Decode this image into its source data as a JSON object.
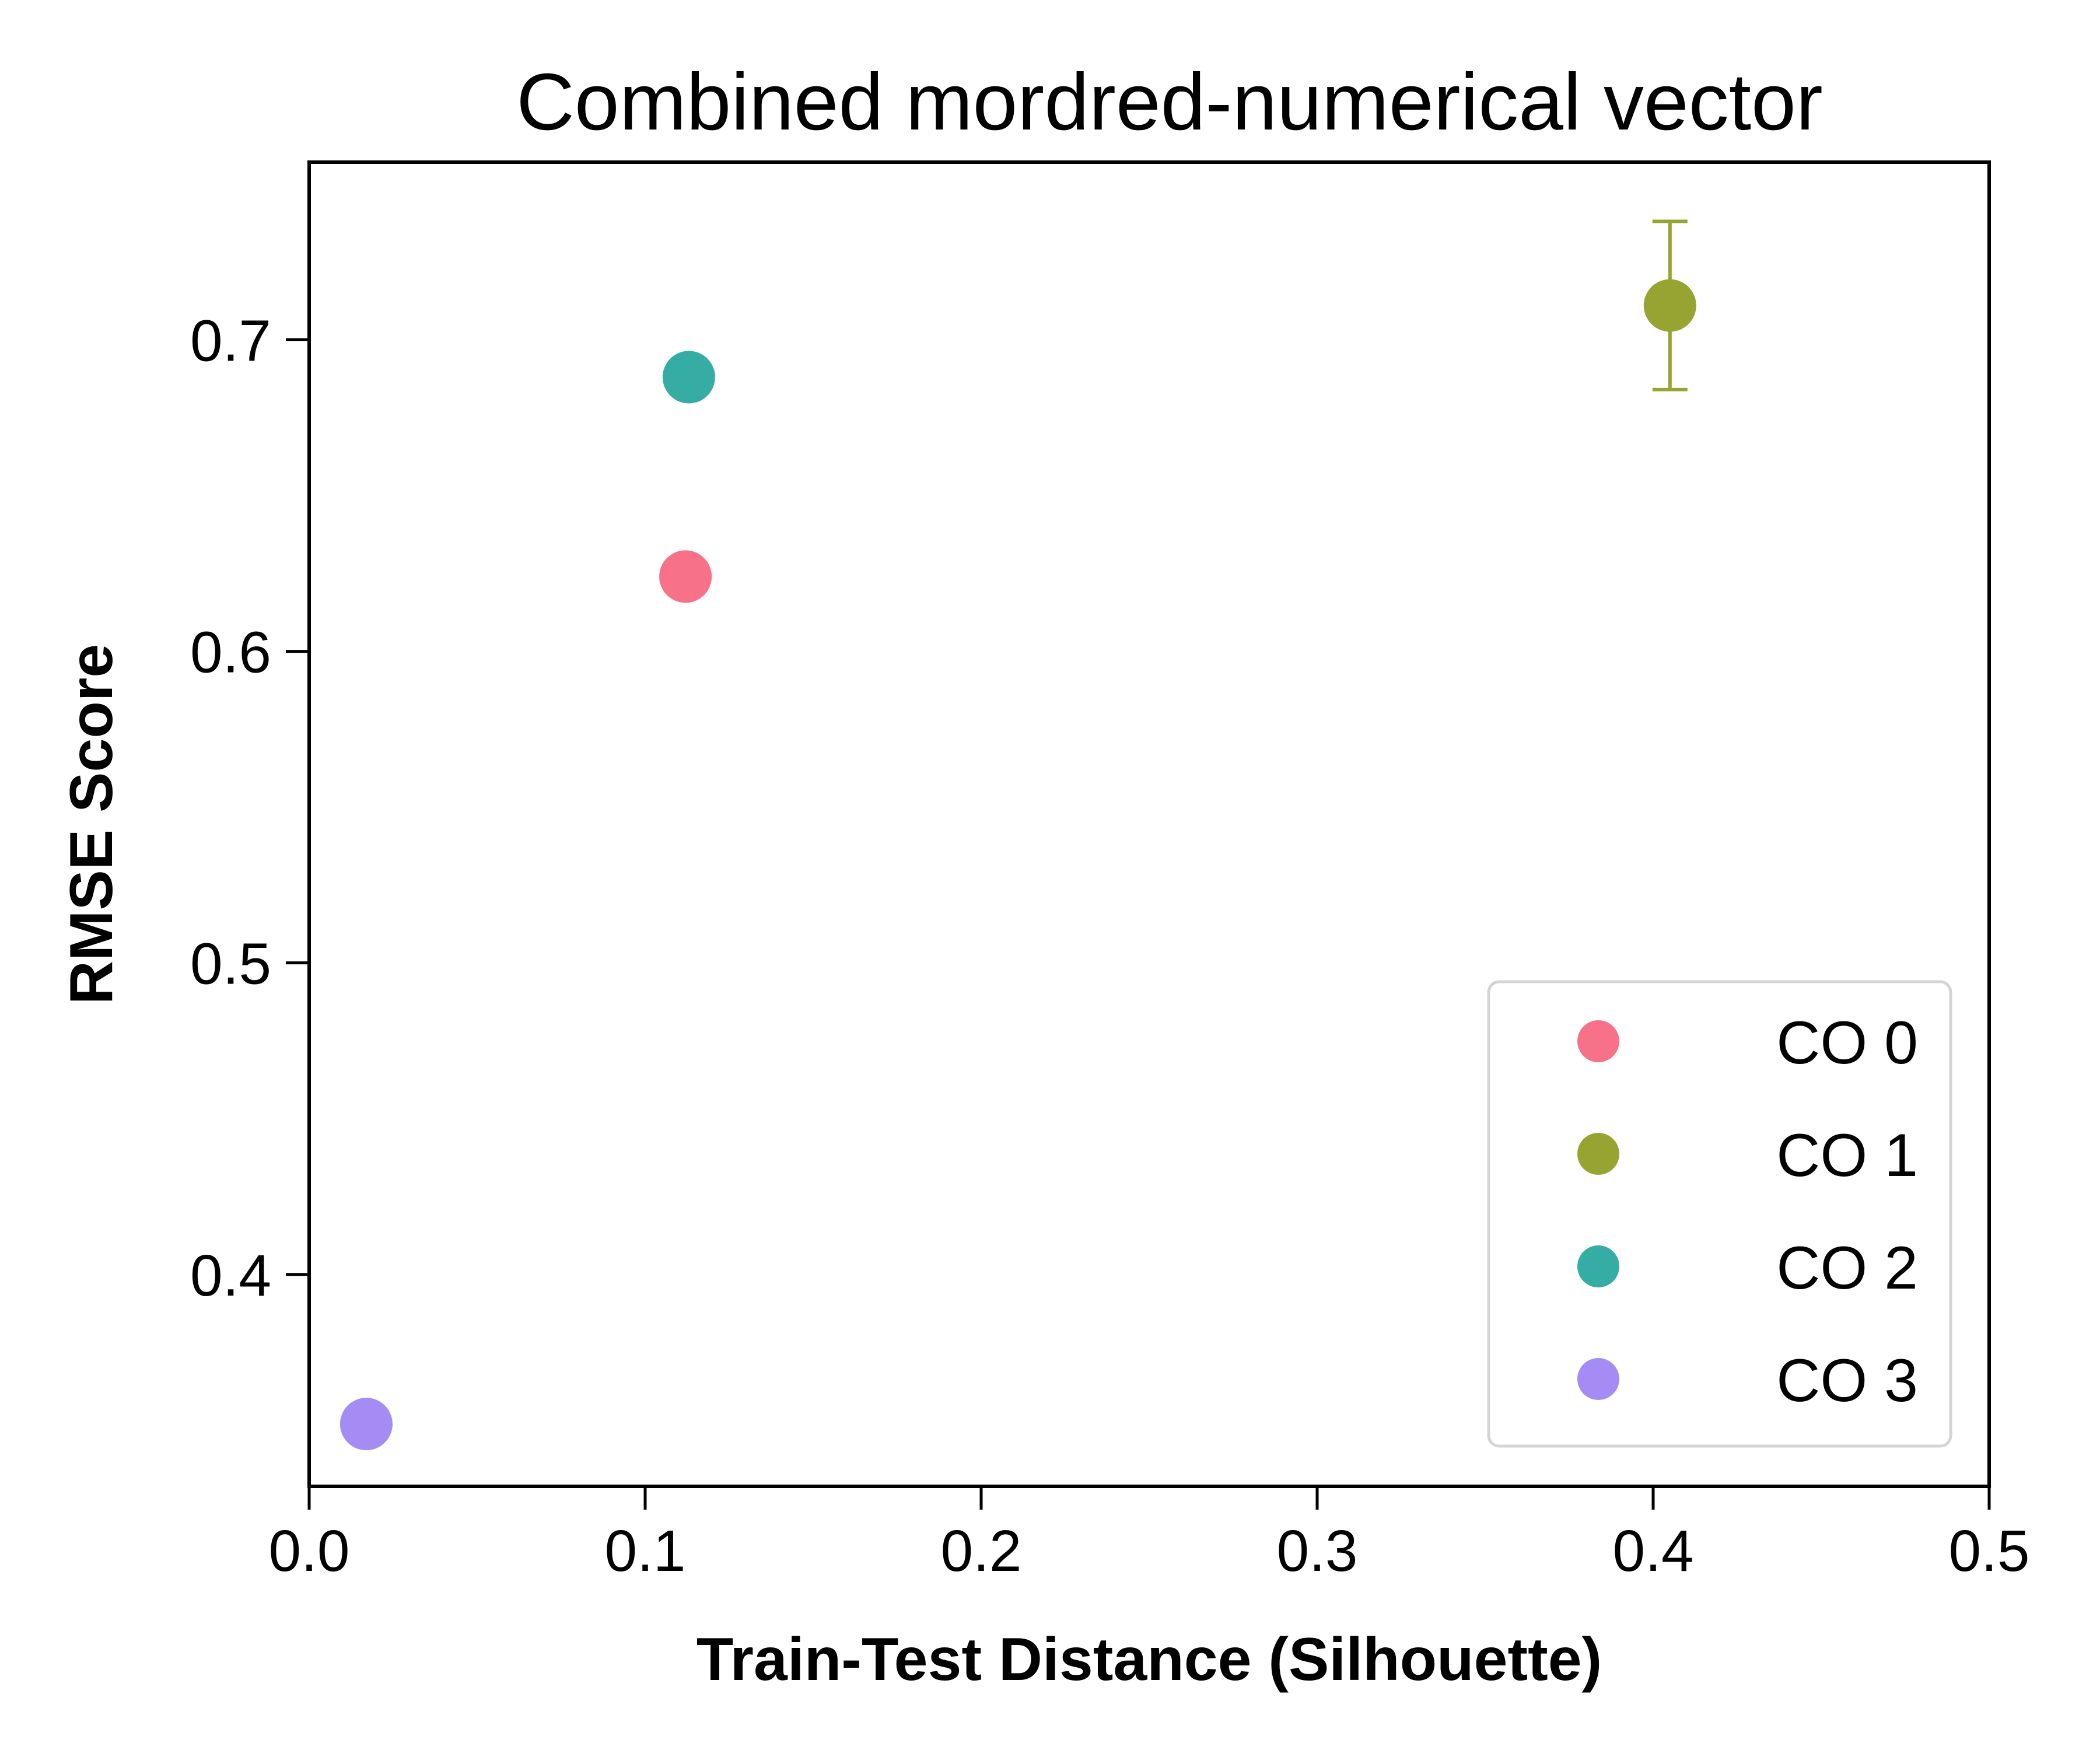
{
  "chart_data": {
    "type": "scatter",
    "title": "Combined mordred-numerical vector",
    "xlabel": "Train-Test Distance (Silhouette)",
    "ylabel": "RMSE Score",
    "xlim": [
      0.0,
      0.5
    ],
    "ylim": [
      0.332,
      0.757
    ],
    "xticks": [
      "0.0",
      "0.1",
      "0.2",
      "0.3",
      "0.4",
      "0.5"
    ],
    "yticks": [
      "0.4",
      "0.5",
      "0.6",
      "0.7"
    ],
    "grid": false,
    "legend_position": "bottom-right",
    "series": [
      {
        "name": "CO 0",
        "color": "#f77189",
        "x": 0.112,
        "y": 0.624,
        "yerr": 0.003
      },
      {
        "name": "CO 1",
        "color": "#97a431",
        "x": 0.405,
        "y": 0.711,
        "yerr": 0.027
      },
      {
        "name": "CO 2",
        "color": "#36ada4",
        "x": 0.113,
        "y": 0.688,
        "yerr": 0.003
      },
      {
        "name": "CO 3",
        "color": "#a48cf4",
        "x": 0.017,
        "y": 0.352,
        "yerr": 0.002
      }
    ]
  }
}
